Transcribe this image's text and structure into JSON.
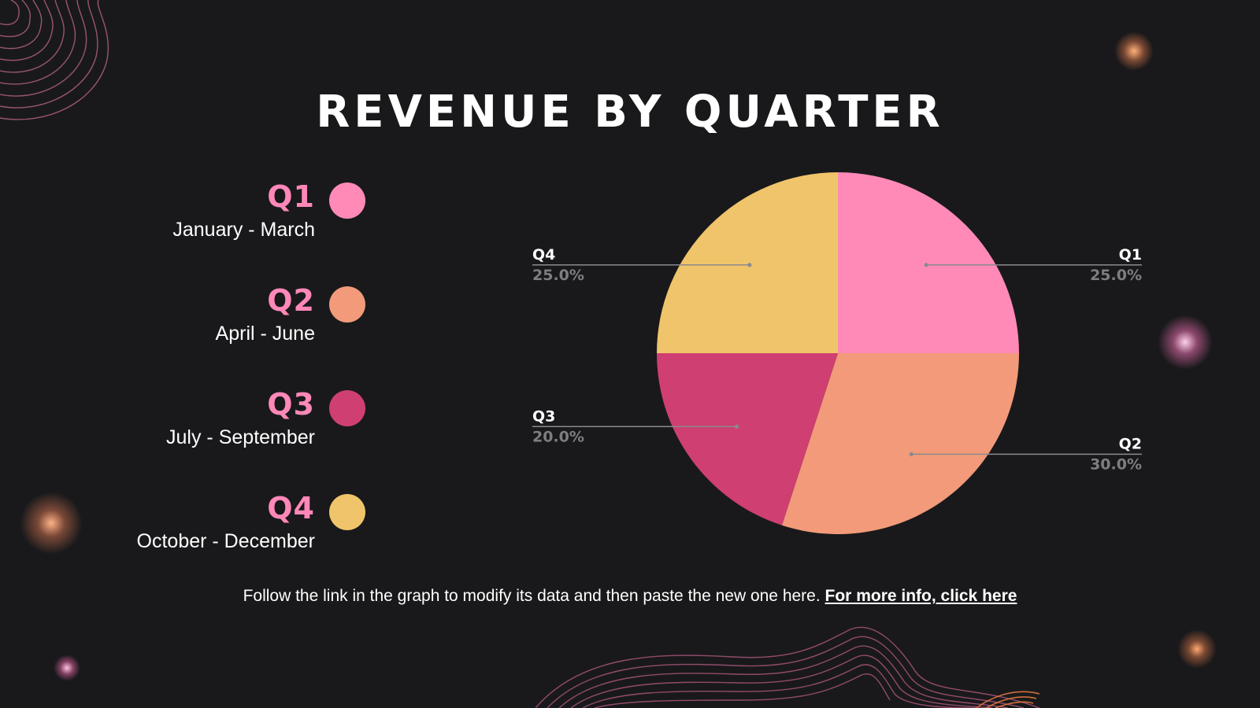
{
  "title": "REVENUE BY QUARTER",
  "legend": [
    {
      "label": "Q1",
      "range": "January - March",
      "color": "#ff8ab8"
    },
    {
      "label": "Q2",
      "range": "April - June",
      "color": "#f29a79"
    },
    {
      "label": "Q3",
      "range": "July - September",
      "color": "#cf3f72"
    },
    {
      "label": "Q4",
      "range": "October - December",
      "color": "#f0c46a"
    }
  ],
  "footer": {
    "text": "Follow the link in the graph to modify its data and then paste the new one here.",
    "link_text": "For more info, click here"
  },
  "chart_data": {
    "type": "pie",
    "title": "REVENUE BY QUARTER",
    "slices": [
      {
        "label": "Q1",
        "value": 25.0,
        "value_label": "25.0%",
        "color": "#ff8ab8",
        "label_side": "right"
      },
      {
        "label": "Q2",
        "value": 30.0,
        "value_label": "30.0%",
        "color": "#f29a79",
        "label_side": "right"
      },
      {
        "label": "Q3",
        "value": 20.0,
        "value_label": "20.0%",
        "color": "#cf3f72",
        "label_side": "left"
      },
      {
        "label": "Q4",
        "value": 25.0,
        "value_label": "25.0%",
        "color": "#f0c46a",
        "label_side": "left"
      }
    ],
    "start": "top",
    "direction": "clockwise"
  }
}
